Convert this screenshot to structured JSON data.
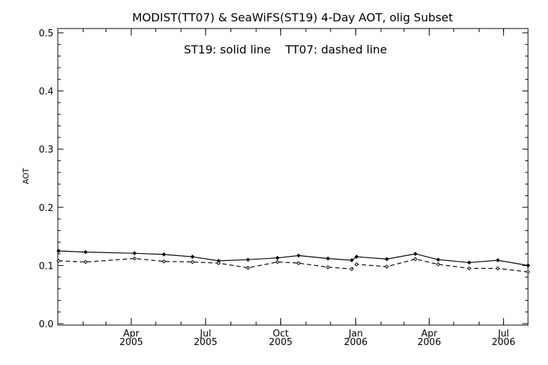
{
  "chart_data": {
    "type": "line",
    "title": "MODIST(TT07) & SeaWiFS(ST19) 4-Day AOT, olig Subset",
    "annotation": "ST19: solid line    TT07: dashed line",
    "xlabel": "",
    "ylabel": "AOT",
    "ylim": [
      0.0,
      0.5
    ],
    "yticks": [
      "0.0",
      "0.1",
      "0.2",
      "0.3",
      "0.4",
      "0.5"
    ],
    "xlim": [
      "2005-01-01",
      "2006-07-31"
    ],
    "xticks": [
      {
        "date": "2005-04-01",
        "month": "Apr",
        "year": "2005"
      },
      {
        "date": "2005-07-01",
        "month": "Jul",
        "year": "2005"
      },
      {
        "date": "2005-10-01",
        "month": "Oct",
        "year": "2005"
      },
      {
        "date": "2006-01-01",
        "month": "Jan",
        "year": "2006"
      },
      {
        "date": "2006-04-01",
        "month": "Apr",
        "year": "2006"
      },
      {
        "date": "2006-07-01",
        "month": "Jul",
        "year": "2006"
      }
    ],
    "grid": false,
    "series": [
      {
        "name": "ST19",
        "style": "solid",
        "color": "#000000",
        "x": [
          "2005-01-02",
          "2005-02-04",
          "2005-04-05",
          "2005-05-11",
          "2005-06-15",
          "2005-07-17",
          "2005-08-22",
          "2005-09-27",
          "2005-10-23",
          "2005-11-28",
          "2005-12-27",
          "2006-01-02",
          "2006-02-08",
          "2006-03-15",
          "2006-04-12",
          "2006-05-20",
          "2006-06-24",
          "2006-07-31"
        ],
        "values": [
          0.125,
          0.123,
          0.121,
          0.119,
          0.115,
          0.108,
          0.11,
          0.113,
          0.117,
          0.112,
          0.109,
          0.115,
          0.111,
          0.12,
          0.11,
          0.105,
          0.109,
          0.1
        ]
      },
      {
        "name": "TT07",
        "style": "dashed",
        "color": "#000000",
        "x": [
          "2005-01-02",
          "2005-02-04",
          "2005-04-05",
          "2005-05-11",
          "2005-06-15",
          "2005-07-17",
          "2005-08-22",
          "2005-09-27",
          "2005-10-23",
          "2005-11-28",
          "2005-12-27",
          "2006-01-02",
          "2006-02-08",
          "2006-03-15",
          "2006-04-12",
          "2006-05-20",
          "2006-06-24",
          "2006-07-31"
        ],
        "values": [
          0.108,
          0.106,
          0.112,
          0.107,
          0.106,
          0.104,
          0.096,
          0.106,
          0.104,
          0.097,
          0.094,
          0.102,
          0.098,
          0.111,
          0.102,
          0.095,
          0.095,
          0.089
        ]
      }
    ]
  }
}
